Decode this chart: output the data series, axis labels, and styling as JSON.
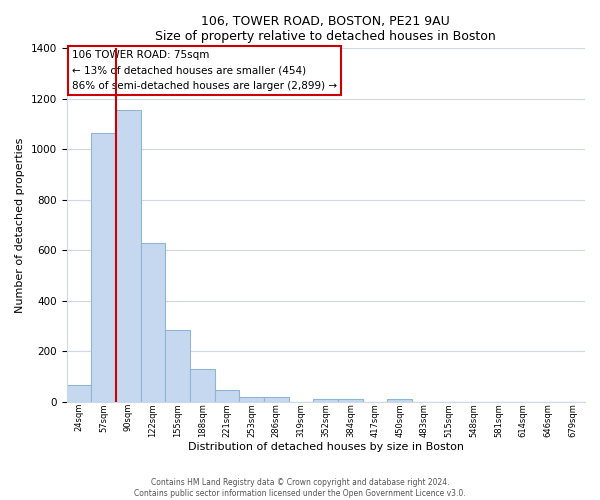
{
  "title": "106, TOWER ROAD, BOSTON, PE21 9AU",
  "subtitle": "Size of property relative to detached houses in Boston",
  "xlabel": "Distribution of detached houses by size in Boston",
  "ylabel": "Number of detached properties",
  "bar_labels": [
    "24sqm",
    "57sqm",
    "90sqm",
    "122sqm",
    "155sqm",
    "188sqm",
    "221sqm",
    "253sqm",
    "286sqm",
    "319sqm",
    "352sqm",
    "384sqm",
    "417sqm",
    "450sqm",
    "483sqm",
    "515sqm",
    "548sqm",
    "581sqm",
    "614sqm",
    "646sqm",
    "679sqm"
  ],
  "bar_values": [
    65,
    1065,
    1155,
    630,
    285,
    130,
    47,
    20,
    20,
    0,
    12,
    10,
    0,
    10,
    0,
    0,
    0,
    0,
    0,
    0,
    0
  ],
  "bar_color": "#c5d8f0",
  "bar_edge_color": "#90b4d4",
  "property_line_x": 1.5,
  "property_line_color": "#cc0000",
  "annotation_text": "106 TOWER ROAD: 75sqm\n← 13% of detached houses are smaller (454)\n86% of semi-detached houses are larger (2,899) →",
  "annotation_box_color": "#ffffff",
  "annotation_box_edge": "#cc0000",
  "ylim": [
    0,
    1400
  ],
  "yticks": [
    0,
    200,
    400,
    600,
    800,
    1000,
    1200,
    1400
  ],
  "footer_text": "Contains HM Land Registry data © Crown copyright and database right 2024.\nContains public sector information licensed under the Open Government Licence v3.0.",
  "background_color": "#ffffff",
  "grid_color": "#cdd9e8"
}
